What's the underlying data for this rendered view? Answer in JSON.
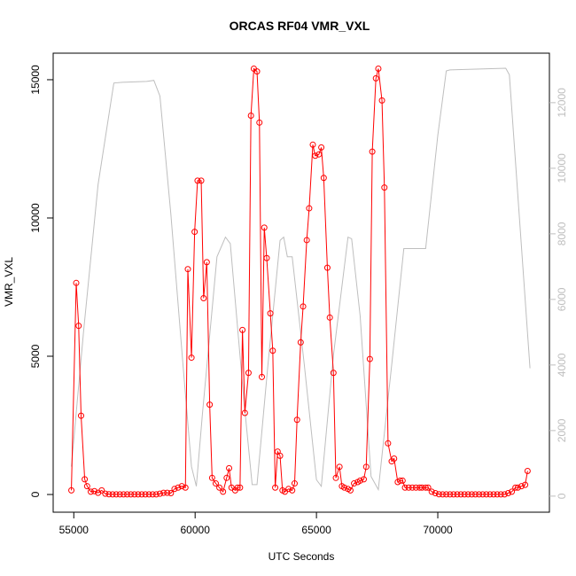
{
  "chart_data": {
    "type": "line",
    "title": "ORCAS RF04 VMR_VXL",
    "x_label": "UTC Seconds",
    "y_label": "VMR_VXL",
    "xlim": [
      54150,
      74600
    ],
    "ylim": [
      -640,
      15960
    ],
    "y2lim": [
      -490,
      13510
    ],
    "xticks": [
      55000,
      60000,
      65000,
      70000
    ],
    "yticks": [
      0,
      5000,
      10000,
      15000
    ],
    "y2ticks": [
      0,
      2000,
      4000,
      6000,
      8000,
      10000,
      12000
    ],
    "series": [
      {
        "color": "#ff0000",
        "markers": true,
        "x": [
          54900,
          55100,
          55200,
          55300,
          55450,
          55550,
          55700,
          55850,
          56000,
          56150,
          56300,
          56450,
          56600,
          56750,
          56900,
          57050,
          57200,
          57350,
          57500,
          57650,
          57800,
          57950,
          58100,
          58250,
          58400,
          58550,
          58700,
          58850,
          59000,
          59150,
          59300,
          59450,
          59600,
          59700,
          59850,
          59980,
          60100,
          60250,
          60350,
          60480,
          60600,
          60700,
          60850,
          61000,
          61150,
          61300,
          61400,
          61500,
          61650,
          61750,
          61850,
          61950,
          62050,
          62200,
          62300,
          62420,
          62550,
          62650,
          62750,
          62850,
          62950,
          63100,
          63200,
          63300,
          63400,
          63500,
          63600,
          63700,
          63850,
          64000,
          64100,
          64200,
          64350,
          64450,
          64600,
          64700,
          64850,
          64950,
          65100,
          65200,
          65300,
          65450,
          65550,
          65700,
          65800,
          65950,
          66050,
          66150,
          66300,
          66400,
          66550,
          66700,
          66800,
          66950,
          67050,
          67200,
          67300,
          67450,
          67550,
          67700,
          67800,
          67950,
          68100,
          68200,
          68350,
          68450,
          68550,
          68650,
          68800,
          68950,
          69100,
          69250,
          69350,
          69500,
          69600,
          69750,
          69900,
          70050,
          70200,
          70350,
          70500,
          70650,
          70800,
          70950,
          71100,
          71250,
          71400,
          71550,
          71700,
          71850,
          72000,
          72150,
          72300,
          72450,
          72600,
          72750,
          72900,
          73050,
          73200,
          73300,
          73450,
          73600,
          73700
        ],
        "values": [
          150,
          7650,
          6100,
          2850,
          550,
          300,
          100,
          120,
          60,
          150,
          30,
          10,
          5,
          5,
          5,
          5,
          5,
          5,
          5,
          5,
          5,
          5,
          5,
          5,
          5,
          30,
          60,
          60,
          50,
          200,
          250,
          300,
          250,
          8150,
          4950,
          9500,
          11350,
          11350,
          7100,
          8400,
          3250,
          600,
          400,
          250,
          100,
          600,
          950,
          250,
          150,
          250,
          250,
          5950,
          2950,
          4400,
          13700,
          15400,
          15300,
          13450,
          4250,
          9650,
          8550,
          6550,
          5200,
          250,
          1550,
          1400,
          150,
          100,
          200,
          150,
          400,
          2700,
          5500,
          6800,
          9200,
          10350,
          12650,
          12250,
          12300,
          12550,
          11450,
          8200,
          6400,
          4400,
          600,
          1000,
          300,
          250,
          200,
          150,
          400,
          450,
          500,
          550,
          1000,
          4900,
          12400,
          15050,
          15400,
          14250,
          11100,
          1850,
          1200,
          1300,
          450,
          500,
          500,
          250,
          250,
          250,
          250,
          250,
          250,
          250,
          250,
          100,
          50,
          10,
          5,
          5,
          5,
          5,
          5,
          5,
          5,
          5,
          5,
          5,
          5,
          5,
          5,
          5,
          5,
          5,
          5,
          5,
          50,
          100,
          250,
          250,
          300,
          350,
          850
        ]
      },
      {
        "color": "#bebebe",
        "axis": "y2",
        "markers": false,
        "x": [
          54900,
          55400,
          56000,
          56650,
          57000,
          58000,
          58300,
          58550,
          59000,
          59500,
          59850,
          60050,
          60300,
          60900,
          61250,
          61450,
          62000,
          62350,
          62550,
          63000,
          63500,
          63650,
          63800,
          64000,
          64500,
          65000,
          65200,
          65700,
          66300,
          66450,
          66800,
          67250,
          67550,
          68100,
          68600,
          69500,
          70000,
          70350,
          70500,
          72800,
          72950,
          73800
        ],
        "values": [
          900,
          5000,
          9500,
          12600,
          12620,
          12650,
          12680,
          12200,
          8600,
          4000,
          900,
          300,
          2500,
          7300,
          7900,
          7700,
          3000,
          350,
          350,
          4000,
          7800,
          7900,
          7300,
          7300,
          4000,
          500,
          300,
          4300,
          7900,
          7850,
          5500,
          600,
          200,
          4000,
          7550,
          7550,
          11000,
          12970,
          13000,
          13050,
          12850,
          3900
        ]
      }
    ]
  }
}
